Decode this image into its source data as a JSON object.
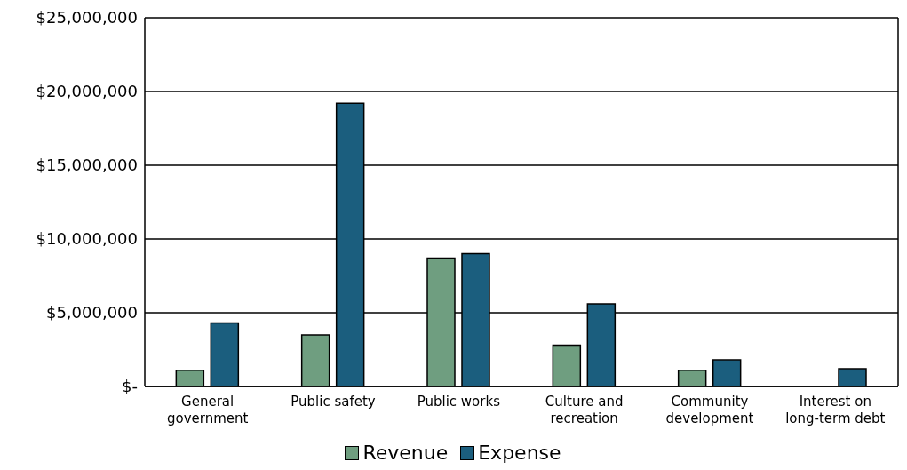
{
  "chart_data": {
    "type": "bar",
    "categories": [
      "General government",
      "Public safety",
      "Public works",
      "Culture and recreation",
      "Community development",
      "Interest on long-term debt"
    ],
    "series": [
      {
        "name": "Revenue",
        "color": "#6f9e80",
        "values": [
          1100000,
          3500000,
          8700000,
          2800000,
          1100000,
          null
        ]
      },
      {
        "name": "Expense",
        "color": "#1b5e7e",
        "values": [
          4300000,
          19200000,
          9000000,
          5600000,
          1800000,
          1200000
        ]
      }
    ],
    "ylim": [
      0,
      25000000
    ],
    "yticks": [
      {
        "value": 0,
        "label": "$-"
      },
      {
        "value": 5000000,
        "label": "$5,000,000"
      },
      {
        "value": 10000000,
        "label": "$10,000,000"
      },
      {
        "value": 15000000,
        "label": "$15,000,000"
      },
      {
        "value": 20000000,
        "label": "$20,000,000"
      },
      {
        "value": 25000000,
        "label": "$25,000,000"
      }
    ],
    "grid": "y",
    "legend": "bottom"
  }
}
